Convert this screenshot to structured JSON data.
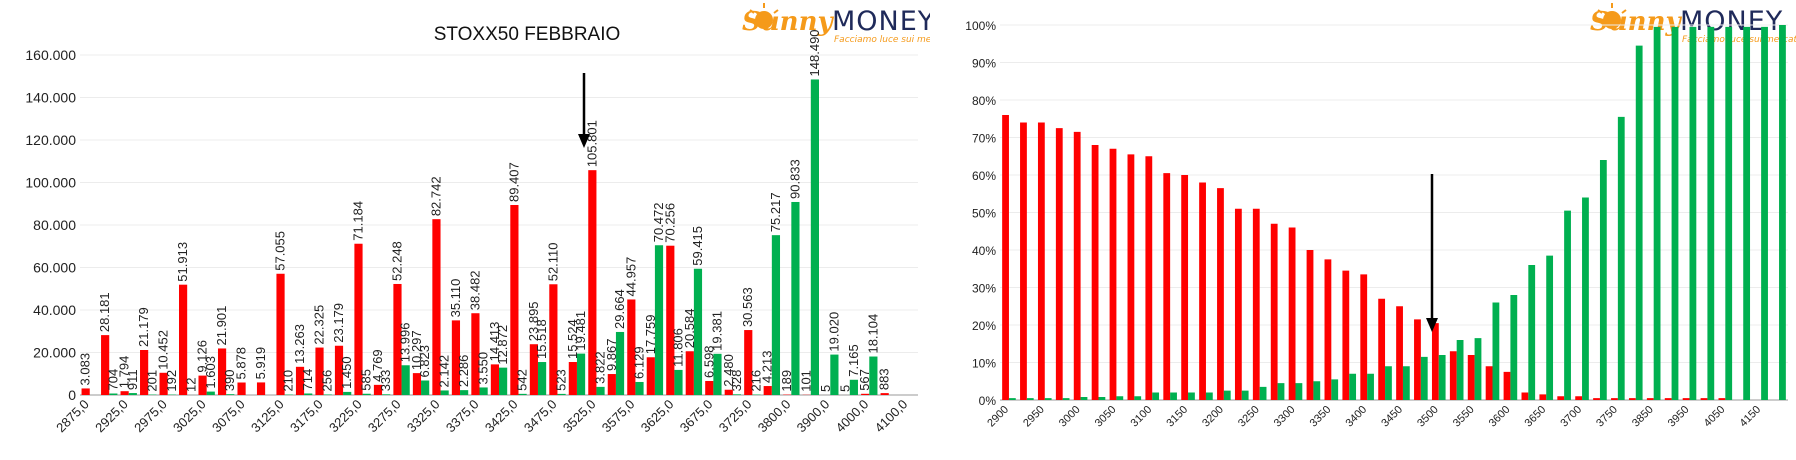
{
  "logo": {
    "sunny": "Sunny",
    "money": "MONEY",
    "tagline": "Facciamo luce sui mercati"
  },
  "colors": {
    "put": "#ff0000",
    "call": "#00b050",
    "arrow": "#000000",
    "logo_orange": "#f59a1a",
    "logo_navy": "#1f2a5a"
  },
  "chart_data": [
    {
      "type": "bar",
      "title": "STOXX50 FEBBRAIO",
      "xlabel": "",
      "ylabel": "",
      "ylim": [
        0,
        160000
      ],
      "yticks": [
        "0",
        "20.000",
        "40.000",
        "60.000",
        "80.000",
        "100.000",
        "120.000",
        "140.000",
        "160.000"
      ],
      "categories": [
        "2875,0",
        "2900,0",
        "2925,0",
        "2950,0",
        "2975,0",
        "3000,0",
        "3025,0",
        "3050,0",
        "3075,0",
        "3100,0",
        "3125,0",
        "3150,0",
        "3175,0",
        "3200,0",
        "3225,0",
        "3250,0",
        "3275,0",
        "3300,0",
        "3325,0",
        "3350,0",
        "3375,0",
        "3400,0",
        "3425,0",
        "3450,0",
        "3475,0",
        "3500,0",
        "3525,0",
        "3550,0",
        "3575,0",
        "3600,0",
        "3625,0",
        "3650,0",
        "3675,0",
        "3700,0",
        "3725,0",
        "3750,0",
        "3800,0",
        "3850,0",
        "3900,0",
        "3950,0",
        "4000,0",
        "4050,0",
        "4100,0"
      ],
      "shown_category_labels": [
        "2875,0",
        "2925,0",
        "2975,0",
        "3025,0",
        "3075,0",
        "3125,0",
        "3175,0",
        "3225,0",
        "3275,0",
        "3325,0",
        "3375,0",
        "3425,0",
        "3475,0",
        "3525,0",
        "3575,0",
        "3625,0",
        "3675,0",
        "3725,0",
        "3800,0",
        "3900,0",
        "4000,0",
        "4100,0"
      ],
      "series": [
        {
          "color": "put",
          "values": [
            3083,
            28181,
            1794,
            21179,
            10452,
            51913,
            9126,
            21901,
            5878,
            5919,
            57055,
            13263,
            22325,
            23179,
            71184,
            4769,
            52248,
            10297,
            82742,
            35110,
            38482,
            14413,
            89407,
            23895,
            52110,
            15524,
            105801,
            9867,
            44957,
            17759,
            70256,
            20584,
            6598,
            2480,
            30563,
            4213,
            189,
            101,
            5,
            5,
            567,
            883,
            0
          ],
          "labels": [
            "3.083",
            "28.181",
            "1.794",
            "21.179",
            "10.452",
            "51.913",
            "9.126",
            "21.901",
            "5.878",
            "5.919",
            "57.055",
            "13.263",
            "22.325",
            "23.179",
            "71.184",
            "4.769",
            "52.248",
            "10.297",
            "82.742",
            "35.110",
            "38.482",
            "14.413",
            "89.407",
            "23.895",
            "52.110",
            "15.524",
            "105.801",
            "9.867",
            "44.957",
            "17.759",
            "70.256",
            "20.584",
            "6.598",
            "2.480",
            "30.563",
            "4.213",
            "189",
            "101",
            "5",
            "5",
            "567",
            "883",
            ""
          ]
        },
        {
          "color": "call",
          "values": [
            0,
            704,
            911,
            201,
            192,
            12,
            1603,
            390,
            0,
            0,
            210,
            714,
            256,
            1450,
            585,
            333,
            13996,
            6823,
            2142,
            2286,
            3550,
            12872,
            542,
            15518,
            523,
            19481,
            3822,
            29664,
            6129,
            70472,
            11806,
            59415,
            19381,
            328,
            216,
            75217,
            90833,
            148490,
            19020,
            7165,
            18104,
            0,
            0
          ],
          "labels": [
            "",
            "704",
            "911",
            "201",
            "192",
            "12",
            "1.603",
            "390",
            "",
            "",
            "210",
            "714",
            "256",
            "1.450",
            "585",
            "333",
            "13.996",
            "6.823",
            "2.142",
            "2.286",
            "3.550",
            "12.872",
            "542",
            "15.518",
            "523",
            "19.481",
            "3.822",
            "29.664",
            "6.129",
            "70.472",
            "11.806",
            "59.415",
            "19.381",
            "328",
            "216",
            "75.217",
            "90.833",
            "148.490",
            "19.020",
            "7.165",
            "18.104",
            "",
            ""
          ]
        }
      ]
    },
    {
      "type": "bar",
      "title": "",
      "xlabel": "",
      "ylabel": "",
      "ylim": [
        0,
        100
      ],
      "yticks": [
        "0%",
        "10%",
        "20%",
        "30%",
        "40%",
        "50%",
        "60%",
        "70%",
        "80%",
        "90%",
        "100%"
      ],
      "categories": [
        "2900",
        "2925",
        "2950",
        "2975",
        "3000",
        "3025",
        "3050",
        "3075",
        "3100",
        "3125",
        "3150",
        "3175",
        "3200",
        "3225",
        "3250",
        "3275",
        "3300",
        "3325",
        "3350",
        "3375",
        "3400",
        "3425",
        "3450",
        "3475",
        "3500",
        "3525",
        "3550",
        "3575",
        "3600",
        "3625",
        "3650",
        "3675",
        "3700",
        "3725",
        "3750",
        "3775",
        "3850",
        "3900",
        "3950",
        "4000",
        "4050",
        "4100",
        "4150",
        "4200"
      ],
      "shown_category_labels": [
        "2900",
        "2950",
        "3000",
        "3050",
        "3100",
        "3150",
        "3200",
        "3250",
        "3300",
        "3350",
        "3400",
        "3450",
        "3500",
        "3550",
        "3600",
        "3650",
        "3700",
        "3750",
        "3850",
        "3950",
        "4050",
        "4150"
      ],
      "series": [
        {
          "color": "put",
          "values": [
            76,
            74,
            74,
            72.5,
            71.5,
            68,
            67,
            65.5,
            65,
            60.5,
            60,
            58,
            56.5,
            51,
            51,
            47,
            46,
            40,
            37.5,
            34.5,
            33.5,
            27,
            25,
            21.5,
            20.5,
            13,
            12,
            9,
            7.5,
            2,
            1.5,
            1,
            1,
            0.5,
            0.5,
            0.5,
            0.5,
            0.5,
            0.5,
            0.5,
            0.5,
            0,
            0,
            0
          ]
        },
        {
          "color": "call",
          "values": [
            0.5,
            0.5,
            0.5,
            0.5,
            0.8,
            0.8,
            1,
            1,
            2,
            2,
            2,
            2,
            2.5,
            2.5,
            3.5,
            4.5,
            4.5,
            5,
            5.5,
            7,
            7,
            9,
            9,
            11.5,
            12,
            16,
            16.5,
            26,
            28,
            36,
            38.5,
            50.5,
            54,
            64,
            75.5,
            94.5,
            99.5,
            99.5,
            99.5,
            99.5,
            99.5,
            99.5,
            99.5,
            100
          ]
        }
      ]
    }
  ]
}
